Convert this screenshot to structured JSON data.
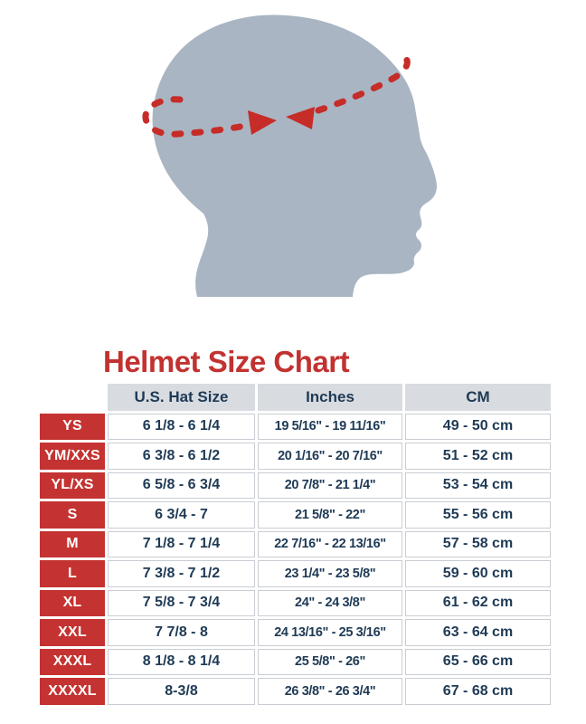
{
  "title": {
    "text": "Helmet Size Chart",
    "color": "#c23230"
  },
  "illustration": {
    "name": "head-circumference-measurement",
    "head_color": "#a9b5c2",
    "band_color": "#c62c28"
  },
  "table": {
    "columns": [
      "U.S. Hat Size",
      "Inches",
      "CM"
    ],
    "header_bg": "#d8dce1",
    "label_bg": "#c43331",
    "text_color": "#1f3a55",
    "rows": [
      {
        "size": "YS",
        "hat": "6 1/8 - 6 1/4",
        "inches": "19 5/16\" - 19 11/16\"",
        "cm": "49 - 50 cm"
      },
      {
        "size": "YM/XXS",
        "hat": "6 3/8 - 6 1/2",
        "inches": "20 1/16\" - 20 7/16\"",
        "cm": "51 - 52 cm"
      },
      {
        "size": "YL/XS",
        "hat": "6 5/8 - 6 3/4",
        "inches": "20 7/8\" - 21 1/4\"",
        "cm": "53 - 54 cm"
      },
      {
        "size": "S",
        "hat": "6 3/4 - 7",
        "inches": "21 5/8\" - 22\"",
        "cm": "55 - 56 cm"
      },
      {
        "size": "M",
        "hat": "7 1/8 - 7 1/4",
        "inches": "22 7/16\" - 22 13/16\"",
        "cm": "57 - 58 cm"
      },
      {
        "size": "L",
        "hat": "7 3/8 - 7 1/2",
        "inches": "23 1/4\" - 23 5/8\"",
        "cm": "59 - 60 cm"
      },
      {
        "size": "XL",
        "hat": "7 5/8 - 7 3/4",
        "inches": "24\" - 24 3/8\"",
        "cm": "61 - 62 cm"
      },
      {
        "size": "XXL",
        "hat": "7 7/8 - 8",
        "inches": "24 13/16\" - 25 3/16\"",
        "cm": "63 - 64 cm"
      },
      {
        "size": "XXXL",
        "hat": "8 1/8 - 8 1/4",
        "inches": "25 5/8\" - 26\"",
        "cm": "65 - 66 cm"
      },
      {
        "size": "XXXXL",
        "hat": "8-3/8",
        "inches": "26 3/8\" - 26 3/4\"",
        "cm": "67 - 68 cm"
      }
    ]
  }
}
